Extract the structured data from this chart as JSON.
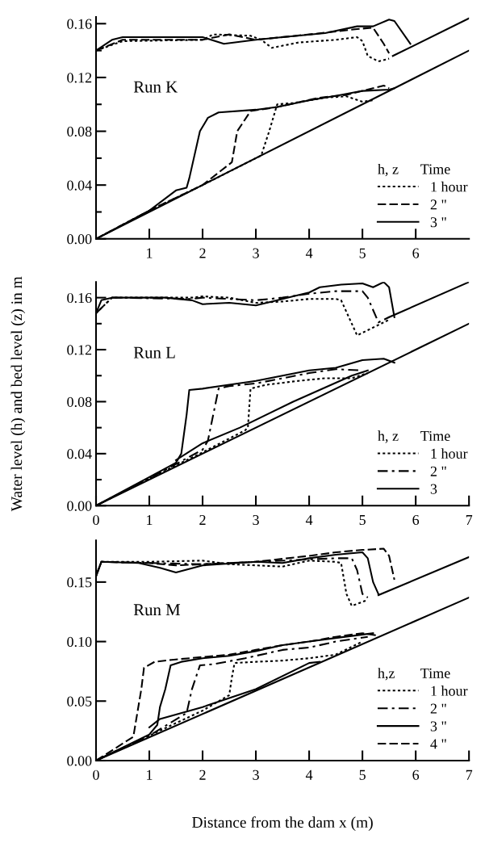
{
  "chart_data": [
    {
      "type": "line",
      "annotations": [
        "Run K"
      ],
      "legend_title": "h, z      Time",
      "legend": "lower right",
      "xlim": [
        0,
        7
      ],
      "xticks": [
        1,
        2,
        3,
        4,
        5,
        6
      ],
      "ylim": [
        0,
        0.165
      ],
      "yticks": [
        {
          "value": 0,
          "label": "0.00"
        },
        {
          "value": 0.02,
          "label": null
        },
        {
          "value": 0.04,
          "label": "0.04"
        },
        {
          "value": 0.06,
          "label": null
        },
        {
          "value": 0.08,
          "label": "0.08"
        },
        {
          "value": 0.1,
          "label": null
        },
        {
          "value": 0.12,
          "label": "0.12"
        },
        {
          "value": 0.14,
          "label": null
        },
        {
          "value": 0.16,
          "label": "0.16"
        }
      ],
      "series": [
        {
          "name": "1 hour",
          "color": "#000000",
          "line_style": "dotted",
          "x": [
            0,
            0.5,
            2,
            2.2,
            2.9,
            3.1,
            3.3,
            3.8,
            4.5,
            4.9,
            5.0,
            5.1,
            5.3,
            5.5
          ],
          "values": [
            0.14,
            0.147,
            0.148,
            0.152,
            0.151,
            0.148,
            0.142,
            0.146,
            0.148,
            0.15,
            0.147,
            0.136,
            0.132,
            0.134
          ]
        },
        {
          "name": "2 \"",
          "color": "#000000",
          "line_style": "dashed",
          "x": [
            0,
            0.5,
            2,
            2.5,
            3,
            4,
            4.9,
            5.2,
            5.4,
            5.5
          ],
          "values": [
            0.14,
            0.148,
            0.148,
            0.152,
            0.148,
            0.152,
            0.156,
            0.157,
            0.145,
            0.138
          ]
        },
        {
          "name": "3 \"",
          "color": "#000000",
          "line_style": "solid",
          "x": [
            0,
            0.3,
            0.5,
            2,
            2.4,
            3,
            3.5,
            4.3,
            4.9,
            5.2,
            5.5,
            5.6,
            5.9
          ],
          "values": [
            0.14,
            0.148,
            0.15,
            0.15,
            0.145,
            0.148,
            0.15,
            0.153,
            0.158,
            0.158,
            0.163,
            0.162,
            0.145
          ]
        },
        {
          "color": "#000000",
          "line_style": "dotted",
          "x": [
            0,
            1,
            2,
            2.9,
            3.1,
            3.25,
            3.4,
            3.7,
            4.3,
            4.7,
            5.0,
            5.2
          ],
          "values": [
            0,
            0.021,
            0.04,
            0.058,
            0.062,
            0.08,
            0.1,
            0.101,
            0.105,
            0.106,
            0.102,
            0.103
          ]
        },
        {
          "color": "#000000",
          "line_style": "dashed",
          "x": [
            0,
            1,
            2,
            2.55,
            2.65,
            2.9,
            3.4,
            4.2,
            4.7,
            5.2,
            5.4,
            5.5
          ],
          "values": [
            0,
            0.021,
            0.04,
            0.057,
            0.08,
            0.095,
            0.098,
            0.105,
            0.107,
            0.112,
            0.114,
            0.112
          ]
        },
        {
          "color": "#000000",
          "line_style": "solid",
          "x": [
            0,
            1,
            1.5,
            1.7,
            1.75,
            1.95,
            2.1,
            2.3,
            3,
            3.4,
            4,
            4.6,
            5,
            5.5,
            5.6
          ],
          "values": [
            0,
            0.021,
            0.036,
            0.038,
            0.045,
            0.08,
            0.09,
            0.094,
            0.096,
            0.098,
            0.103,
            0.107,
            0.11,
            0.111,
            0.112
          ]
        },
        {
          "color": "#000000",
          "line_style": "solid",
          "x": [
            5.57,
            7
          ],
          "values": [
            0.136,
            0.164
          ]
        },
        {
          "color": "#000000",
          "line_style": "solid",
          "x": [
            0,
            7
          ],
          "values": [
            0,
            0.14
          ]
        }
      ]
    },
    {
      "type": "line",
      "annotations": [
        "Run L"
      ],
      "ylabel": "Water level (h) and bed level (z) in m",
      "legend_title": "h, z      Time",
      "legend": "lower right",
      "xlim": [
        0,
        7
      ],
      "xticks": [
        0,
        1,
        2,
        3,
        4,
        5,
        6,
        7
      ],
      "ylim": [
        0,
        0.172
      ],
      "yticks": [
        {
          "value": 0,
          "label": "0.00"
        },
        {
          "value": 0.02,
          "label": null
        },
        {
          "value": 0.04,
          "label": "0.04"
        },
        {
          "value": 0.06,
          "label": null
        },
        {
          "value": 0.08,
          "label": "0.08"
        },
        {
          "value": 0.1,
          "label": null
        },
        {
          "value": 0.12,
          "label": "0.12"
        },
        {
          "value": 0.14,
          "label": null
        },
        {
          "value": 0.16,
          "label": "0.16"
        }
      ],
      "series": [
        {
          "name": "1 hour",
          "color": "#000000",
          "line_style": "dotted",
          "x": [
            0,
            0.3,
            1.8,
            2,
            2.5,
            3,
            3.5,
            4,
            4.5,
            4.6,
            4.8,
            4.9,
            5.5
          ],
          "values": [
            0.148,
            0.16,
            0.16,
            0.161,
            0.16,
            0.156,
            0.157,
            0.159,
            0.159,
            0.158,
            0.14,
            0.131,
            0.143
          ]
        },
        {
          "name": "2 \"",
          "color": "#000000",
          "line_style": "dashdot",
          "x": [
            0,
            0.3,
            1.8,
            2,
            2.5,
            3,
            3.5,
            4,
            4.5,
            5.0,
            5.1,
            5.3,
            5.5
          ],
          "values": [
            0.148,
            0.16,
            0.159,
            0.16,
            0.159,
            0.158,
            0.16,
            0.163,
            0.165,
            0.165,
            0.16,
            0.141,
            0.145
          ]
        },
        {
          "name": "3",
          "color": "#000000",
          "line_style": "solid",
          "x": [
            0,
            0.1,
            0.3,
            1.3,
            1.8,
            2,
            2.5,
            3,
            3.3,
            3.7,
            4,
            4.2,
            4.6,
            5.0,
            5.2,
            5.4,
            5.5,
            5.6
          ],
          "values": [
            0.148,
            0.158,
            0.16,
            0.16,
            0.158,
            0.155,
            0.156,
            0.154,
            0.157,
            0.161,
            0.164,
            0.168,
            0.17,
            0.171,
            0.168,
            0.172,
            0.168,
            0.145
          ]
        },
        {
          "color": "#000000",
          "line_style": "dotted",
          "x": [
            0,
            1,
            2,
            2.8,
            2.85,
            2.9,
            3.2,
            3.8,
            4.3,
            4.8,
            5.1
          ],
          "values": [
            0,
            0.021,
            0.041,
            0.058,
            0.06,
            0.09,
            0.093,
            0.096,
            0.098,
            0.098,
            0.102
          ]
        },
        {
          "color": "#000000",
          "line_style": "dashdot",
          "x": [
            0,
            1,
            2,
            2.1,
            2.3,
            2.5,
            3,
            3.5,
            4,
            4.5,
            5
          ],
          "values": [
            0,
            0.021,
            0.043,
            0.05,
            0.09,
            0.092,
            0.094,
            0.098,
            0.102,
            0.105,
            0.104
          ]
        },
        {
          "color": "#000000",
          "line_style": "solid",
          "x": [
            0,
            1,
            1.5,
            1.6,
            1.7,
            1.75,
            2,
            2.5,
            3,
            3.5,
            4,
            4.5,
            5,
            5.4,
            5.6
          ],
          "values": [
            0,
            0.022,
            0.033,
            0.04,
            0.07,
            0.089,
            0.09,
            0.093,
            0.096,
            0.1,
            0.104,
            0.106,
            0.112,
            0.113,
            0.11
          ]
        },
        {
          "color": "#000000",
          "line_style": "solid",
          "x": [
            1.5,
            2,
            2.7,
            3.7,
            4.8,
            5.1
          ],
          "values": [
            0.035,
            0.048,
            0.06,
            0.08,
            0.1,
            0.104
          ]
        },
        {
          "color": "#000000",
          "line_style": "solid",
          "x": [
            5.5,
            7
          ],
          "values": [
            0.145,
            0.172
          ]
        },
        {
          "color": "#000000",
          "line_style": "solid",
          "x": [
            0,
            7
          ],
          "values": [
            0,
            0.14
          ]
        }
      ]
    },
    {
      "type": "line",
      "annotations": [
        "Run M"
      ],
      "xlabel": "Distance from the dam x (m)",
      "legend_title": "h,z       Time",
      "legend": "lower right",
      "xlim": [
        0,
        7
      ],
      "xticks": [
        0,
        1,
        2,
        3,
        4,
        5,
        6,
        7
      ],
      "ylim": [
        0,
        0.185
      ],
      "yticks": [
        {
          "value": 0,
          "label": "0.00"
        },
        {
          "value": 0.05,
          "label": "0.05"
        },
        {
          "value": 0.1,
          "label": "0.10"
        },
        {
          "value": 0.15,
          "label": "0.15"
        }
      ],
      "series": [
        {
          "name": "1 hour",
          "color": "#000000",
          "line_style": "dotted",
          "x": [
            0,
            0.1,
            1,
            2,
            2.5,
            3,
            3.5,
            4,
            4.5,
            4.6,
            4.7,
            4.8,
            5.1
          ],
          "values": [
            0.155,
            0.167,
            0.167,
            0.168,
            0.165,
            0.164,
            0.163,
            0.168,
            0.167,
            0.166,
            0.14,
            0.13,
            0.135
          ]
        },
        {
          "name": "2 \"",
          "color": "#000000",
          "line_style": "dashdot",
          "x": [
            0,
            0.1,
            1,
            2,
            3,
            4,
            4.5,
            4.8,
            4.9,
            5.0,
            5.1
          ],
          "values": [
            0.155,
            0.167,
            0.166,
            0.165,
            0.167,
            0.169,
            0.17,
            0.17,
            0.16,
            0.14,
            0.137
          ]
        },
        {
          "name": "3 \"",
          "color": "#000000",
          "line_style": "solid",
          "x": [
            0,
            0.1,
            0.8,
            1.2,
            1.5,
            2,
            3,
            3.5,
            4,
            4.5,
            5.0,
            5.1,
            5.2,
            5.3
          ],
          "values": [
            0.155,
            0.167,
            0.166,
            0.162,
            0.158,
            0.164,
            0.167,
            0.166,
            0.17,
            0.173,
            0.175,
            0.17,
            0.15,
            0.14
          ]
        },
        {
          "name": "4 \"",
          "color": "#000000",
          "line_style": "dashed",
          "x": [
            0,
            0.1,
            1,
            1.5,
            2,
            3,
            4,
            4.5,
            5.0,
            5.4,
            5.5,
            5.6
          ],
          "values": [
            0.155,
            0.167,
            0.166,
            0.164,
            0.165,
            0.167,
            0.172,
            0.175,
            0.177,
            0.178,
            0.172,
            0.152
          ]
        },
        {
          "color": "#000000",
          "line_style": "dotted",
          "x": [
            0,
            1,
            2,
            2.5,
            2.55,
            2.6,
            3,
            3.5,
            4,
            4.5,
            5
          ],
          "values": [
            0,
            0.021,
            0.042,
            0.055,
            0.07,
            0.082,
            0.083,
            0.084,
            0.086,
            0.089,
            0.1
          ]
        },
        {
          "color": "#000000",
          "line_style": "dashdot",
          "x": [
            0,
            1,
            1.7,
            1.8,
            1.95,
            2.2,
            2.8,
            3.5,
            4,
            4.5,
            5.1
          ],
          "values": [
            0,
            0.021,
            0.04,
            0.06,
            0.08,
            0.081,
            0.086,
            0.093,
            0.095,
            0.1,
            0.104
          ]
        },
        {
          "color": "#000000",
          "line_style": "solid",
          "x": [
            0,
            1,
            1.15,
            1.2,
            1.3,
            1.4,
            1.6,
            2,
            2.5,
            3,
            3.5,
            4,
            4.5,
            5.2
          ],
          "values": [
            0,
            0.022,
            0.03,
            0.045,
            0.06,
            0.08,
            0.083,
            0.086,
            0.088,
            0.092,
            0.097,
            0.1,
            0.103,
            0.107
          ]
        },
        {
          "color": "#000000",
          "line_style": "dashed",
          "x": [
            0,
            0.7,
            0.85,
            0.9,
            1.1,
            1.5,
            2,
            2.5,
            3,
            3.5,
            4,
            4.5,
            5,
            5.3
          ],
          "values": [
            0,
            0.02,
            0.06,
            0.078,
            0.083,
            0.085,
            0.087,
            0.089,
            0.093,
            0.097,
            0.1,
            0.104,
            0.107,
            0.105
          ]
        },
        {
          "color": "#000000",
          "line_style": "solid",
          "x": [
            1,
            1.2,
            2,
            3,
            4,
            4.2
          ],
          "values": [
            0.028,
            0.035,
            0.045,
            0.06,
            0.082,
            0.083
          ]
        },
        {
          "color": "#000000",
          "line_style": "solid",
          "x": [
            5.3,
            7
          ],
          "values": [
            0.139,
            0.171
          ]
        },
        {
          "color": "#000000",
          "line_style": "solid",
          "x": [
            0,
            7
          ],
          "values": [
            0,
            0.137
          ]
        }
      ]
    }
  ]
}
